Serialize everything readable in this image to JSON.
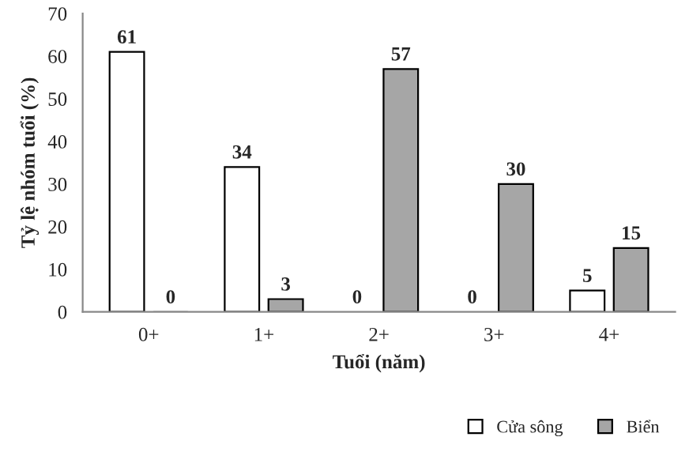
{
  "chart_data": {
    "type": "bar",
    "xlabel": "Tuổi (năm)",
    "ylabel": "Tỷ lệ nhóm tuổi (%)",
    "categories": [
      "0+",
      "1+",
      "2+",
      "3+",
      "4+"
    ],
    "series": [
      {
        "name": "Cửa sông",
        "color": "#ffffff",
        "values": [
          61,
          34,
          0,
          0,
          5
        ]
      },
      {
        "name": "Biển",
        "color": "#a6a6a6",
        "values": [
          0,
          3,
          57,
          30,
          15
        ]
      }
    ],
    "ylim": [
      0,
      70
    ],
    "yticks": [
      0,
      10,
      20,
      30,
      40,
      50,
      60,
      70
    ],
    "data_labels": true,
    "legend": "bottom right",
    "grid": false
  }
}
